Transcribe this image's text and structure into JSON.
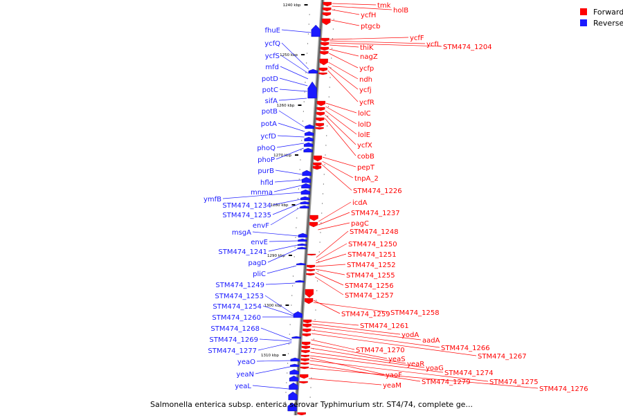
{
  "legend": {
    "forward_label": "Forward",
    "reverse_label": "Reverse",
    "forward_color": "#ff0000",
    "reverse_color": "#1a1aff"
  },
  "caption": "Salmonella enterica subsp. enterica serovar Typhimurium str. ST4/74, complete ge...",
  "axis": {
    "ticks": [
      "1240 kbp",
      "1250 kbp",
      "1260 kbp",
      "1270 kbp",
      "1280 kbp",
      "1290 kbp",
      "1300 kbp",
      "1310 kbp"
    ]
  },
  "forward_genes": [
    "tmk",
    "holB",
    "ycfH",
    "ptgcb",
    "ycfF",
    "ycfL",
    "STM474_1204",
    "thiK",
    "nagZ",
    "ycfp",
    "ndh",
    "ycfj",
    "ycfR",
    "lolC",
    "lolD",
    "lolE",
    "ycfX",
    "cobB",
    "pepT",
    "tnpA_2",
    "STM474_1226",
    "icdA",
    "STM474_1237",
    "pagC",
    "STM474_1248",
    "STM474_1250",
    "STM474_1251",
    "STM474_1252",
    "STM474_1255",
    "STM474_1256",
    "STM474_1257",
    "STM474_1259",
    "STM474_1258",
    "STM474_1261",
    "yodA",
    "aadA",
    "STM474_1266",
    "STM474_1267",
    "STM474_1270",
    "yeaS",
    "yeaR",
    "yoaG",
    "STM474_1274",
    "yaoF",
    "STM474_1275",
    "STM474_1279",
    "yeaM",
    "STM474_1276"
  ],
  "reverse_genes": [
    "fhuE",
    "ycfQ",
    "ycfS",
    "mfd",
    "potD",
    "potC",
    "sifA",
    "potB",
    "potA",
    "ycfD",
    "phoQ",
    "phoP",
    "purB",
    "hfld",
    "mnma",
    "ymfB",
    "STM474_1234",
    "STM474_1235",
    "envF",
    "msgA",
    "envE",
    "STM474_1241",
    "pagD",
    "pliC",
    "STM474_1249",
    "STM474_1253",
    "STM474_1254",
    "STM474_1260",
    "STM474_1268",
    "STM474_1269",
    "STM474_1277",
    "yeaO",
    "yeaN",
    "yeaL"
  ]
}
